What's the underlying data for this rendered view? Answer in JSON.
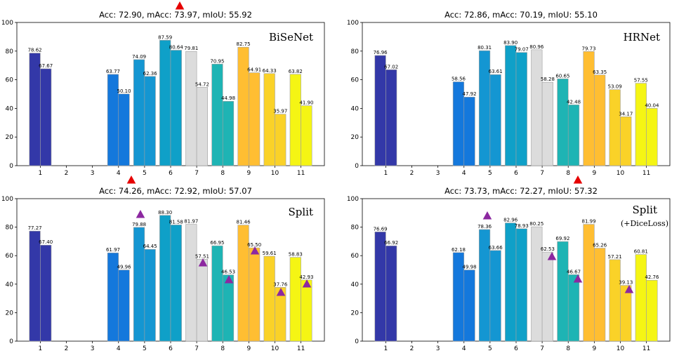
{
  "colors": {
    "1": "#3338a8",
    "4": "#1478dc",
    "5": "#1496d2",
    "6": "#0fa0c8",
    "7": "#dcdcdc",
    "8": "#1eb4b4",
    "9": "#ffbe32",
    "10": "#fad228",
    "11": "#f5f514",
    "edge": "#a0a0a0",
    "red_marker": "#e60000",
    "purple_marker": "#8c28a0"
  },
  "chart_data": [
    {
      "type": "bar",
      "title": "Acc: 72.90, mAcc: 73.97, mIoU: 55.92",
      "model_label": "BiSeNet",
      "model_sublabel": "",
      "categories": [
        "1",
        "2",
        "3",
        "4",
        "5",
        "6",
        "7",
        "8",
        "9",
        "10",
        "11"
      ],
      "series": [
        {
          "values": [
            78.62,
            null,
            null,
            63.77,
            74.09,
            87.59,
            79.81,
            70.95,
            82.75,
            64.33,
            63.82
          ]
        },
        {
          "values": [
            67.67,
            null,
            null,
            50.1,
            62.36,
            80.64,
            54.72,
            44.98,
            64.91,
            35.97,
            41.9
          ]
        }
      ],
      "ylim": [
        0,
        100
      ],
      "yticks": [
        0,
        20,
        40,
        60,
        80,
        100
      ],
      "markers": []
    },
    {
      "type": "bar",
      "title": "Acc: 72.86, mAcc: 70.19, mIoU: 55.10",
      "model_label": "HRNet",
      "model_sublabel": "",
      "categories": [
        "1",
        "2",
        "3",
        "4",
        "5",
        "6",
        "7",
        "8",
        "9",
        "10",
        "11"
      ],
      "series": [
        {
          "values": [
            76.96,
            null,
            null,
            58.56,
            80.31,
            83.9,
            80.96,
            60.65,
            79.73,
            53.09,
            57.55
          ]
        },
        {
          "values": [
            67.02,
            null,
            null,
            47.92,
            63.61,
            79.07,
            58.28,
            42.48,
            63.35,
            34.17,
            40.04
          ]
        }
      ],
      "ylim": [
        0,
        100
      ],
      "yticks": [
        0,
        20,
        40,
        60,
        80,
        100
      ],
      "markers": []
    },
    {
      "type": "bar",
      "title": "Acc: 74.26, mAcc: 72.92, mIoU: 57.07",
      "model_label": "Split",
      "model_sublabel": "",
      "categories": [
        "1",
        "2",
        "3",
        "4",
        "5",
        "6",
        "7",
        "8",
        "9",
        "10",
        "11"
      ],
      "series": [
        {
          "values": [
            77.27,
            null,
            null,
            61.97,
            79.88,
            88.3,
            81.97,
            66.95,
            81.46,
            59.61,
            58.83
          ]
        },
        {
          "values": [
            67.4,
            null,
            null,
            49.96,
            64.45,
            81.58,
            57.51,
            46.53,
            65.5,
            37.76,
            42.93
          ]
        }
      ],
      "ylim": [
        0,
        100
      ],
      "yticks": [
        0,
        20,
        40,
        60,
        80,
        100
      ],
      "markers": []
    },
    {
      "type": "bar",
      "title": "Acc: 73.73, mAcc: 72.27, mIoU: 57.32",
      "model_label": "Split",
      "model_sublabel": "(+DiceLoss)",
      "categories": [
        "1",
        "2",
        "3",
        "4",
        "5",
        "6",
        "7",
        "8",
        "9",
        "10",
        "11"
      ],
      "series": [
        {
          "values": [
            76.69,
            null,
            null,
            62.18,
            78.36,
            82.96,
            80.25,
            69.92,
            81.99,
            57.21,
            60.81
          ]
        },
        {
          "values": [
            66.92,
            null,
            null,
            49.98,
            63.66,
            78.93,
            62.53,
            46.67,
            65.26,
            39.13,
            42.76
          ]
        }
      ],
      "ylim": [
        0,
        100
      ],
      "yticks": [
        0,
        20,
        40,
        60,
        80,
        100
      ],
      "markers": []
    }
  ]
}
